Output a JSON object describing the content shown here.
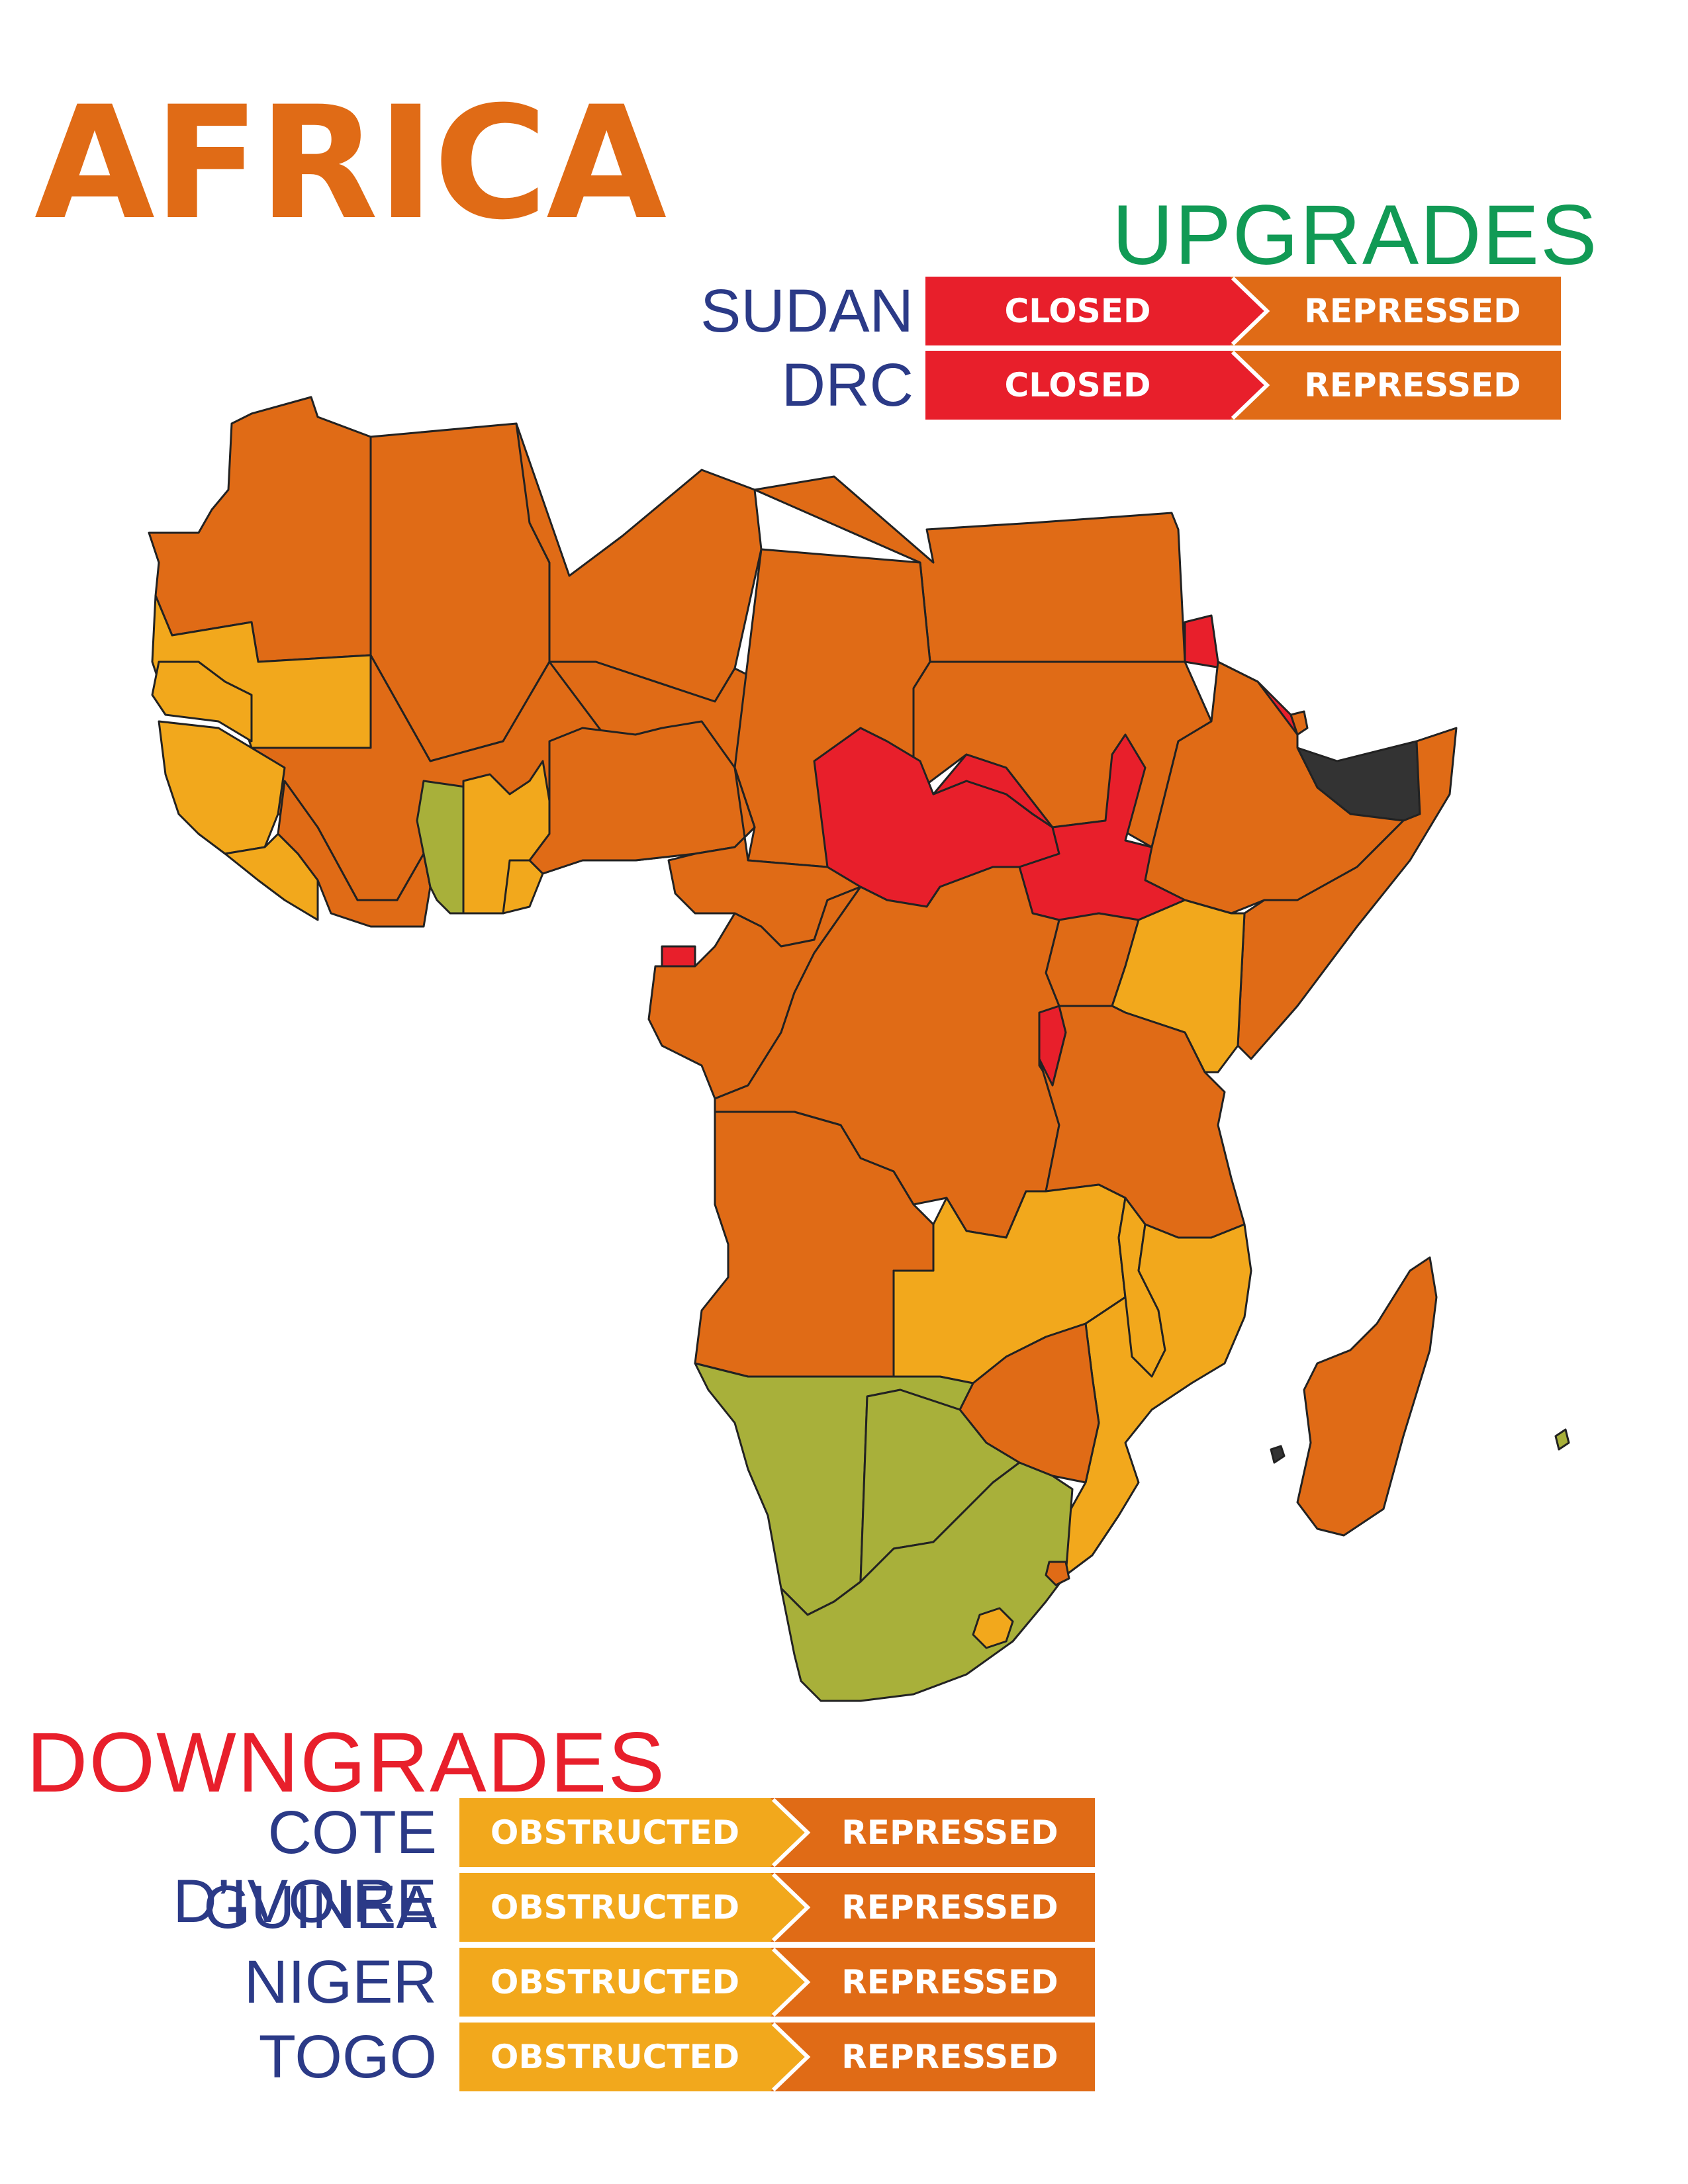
{
  "title": "AFRICA",
  "colors": {
    "title": "#e06b16",
    "upgrades": "#119a55",
    "downgrades": "#e81f2b",
    "country_text": "#2b3a87",
    "closed": "#e81f2b",
    "repressed": "#e06b16",
    "obstructed": "#f2a81c",
    "narrowed": "#a8b03a",
    "unrated": "#333333",
    "border": "#222222"
  },
  "upgrades": {
    "heading": "UPGRADES",
    "rows": [
      {
        "country": "SUDAN",
        "from": "CLOSED",
        "to": "REPRESSED"
      },
      {
        "country": "DRC",
        "from": "CLOSED",
        "to": "REPRESSED"
      }
    ]
  },
  "downgrades": {
    "heading": "DOWNGRADES",
    "rows": [
      {
        "country": "COTE D’IVOIRE",
        "from": "OBSTRUCTED",
        "to": "REPRESSED"
      },
      {
        "country": "GUINEA",
        "from": "OBSTRUCTED",
        "to": "REPRESSED"
      },
      {
        "country": "NIGER",
        "from": "OBSTRUCTED",
        "to": "REPRESSED"
      },
      {
        "country": "TOGO",
        "from": "OBSTRUCTED",
        "to": "REPRESSED"
      }
    ]
  },
  "map": {
    "icon": "africa-map",
    "regions": [
      {
        "name": "morocco-western-sahara",
        "rating": "repressed"
      },
      {
        "name": "algeria",
        "rating": "repressed"
      },
      {
        "name": "libya",
        "rating": "repressed"
      },
      {
        "name": "egypt",
        "rating": "repressed"
      },
      {
        "name": "mauritania",
        "rating": "obstructed"
      },
      {
        "name": "mali",
        "rating": "repressed"
      },
      {
        "name": "niger",
        "rating": "repressed"
      },
      {
        "name": "chad",
        "rating": "repressed"
      },
      {
        "name": "sudan",
        "rating": "repressed"
      },
      {
        "name": "eritrea",
        "rating": "closed"
      },
      {
        "name": "djibouti",
        "rating": "repressed"
      },
      {
        "name": "somaliland",
        "rating": "unrated"
      },
      {
        "name": "ethiopia",
        "rating": "repressed"
      },
      {
        "name": "somalia",
        "rating": "repressed"
      },
      {
        "name": "senegal",
        "rating": "obstructed"
      },
      {
        "name": "burkina-faso",
        "rating": "obstructed"
      },
      {
        "name": "ghana",
        "rating": "narrowed"
      },
      {
        "name": "togo-benin",
        "rating": "obstructed"
      },
      {
        "name": "liberia",
        "rating": "obstructed"
      },
      {
        "name": "nigeria",
        "rating": "repressed"
      },
      {
        "name": "cameroon",
        "rating": "repressed"
      },
      {
        "name": "central-african-republic",
        "rating": "closed"
      },
      {
        "name": "south-sudan",
        "rating": "closed"
      },
      {
        "name": "uganda",
        "rating": "repressed"
      },
      {
        "name": "kenya",
        "rating": "obstructed"
      },
      {
        "name": "equatorial-guinea",
        "rating": "closed"
      },
      {
        "name": "gabon-congo",
        "rating": "repressed"
      },
      {
        "name": "drc",
        "rating": "repressed"
      },
      {
        "name": "rwanda-burundi",
        "rating": "closed"
      },
      {
        "name": "tanzania",
        "rating": "repressed"
      },
      {
        "name": "angola",
        "rating": "repressed"
      },
      {
        "name": "zambia",
        "rating": "obstructed"
      },
      {
        "name": "malawi",
        "rating": "obstructed"
      },
      {
        "name": "mozambique",
        "rating": "obstructed"
      },
      {
        "name": "zimbabwe",
        "rating": "repressed"
      },
      {
        "name": "namibia",
        "rating": "narrowed"
      },
      {
        "name": "botswana",
        "rating": "narrowed"
      },
      {
        "name": "south-africa",
        "rating": "narrowed"
      },
      {
        "name": "lesotho",
        "rating": "obstructed"
      },
      {
        "name": "eswatini",
        "rating": "repressed"
      },
      {
        "name": "madagascar",
        "rating": "repressed"
      },
      {
        "name": "comoros",
        "rating": "unrated"
      },
      {
        "name": "mauritius",
        "rating": "narrowed"
      }
    ]
  }
}
